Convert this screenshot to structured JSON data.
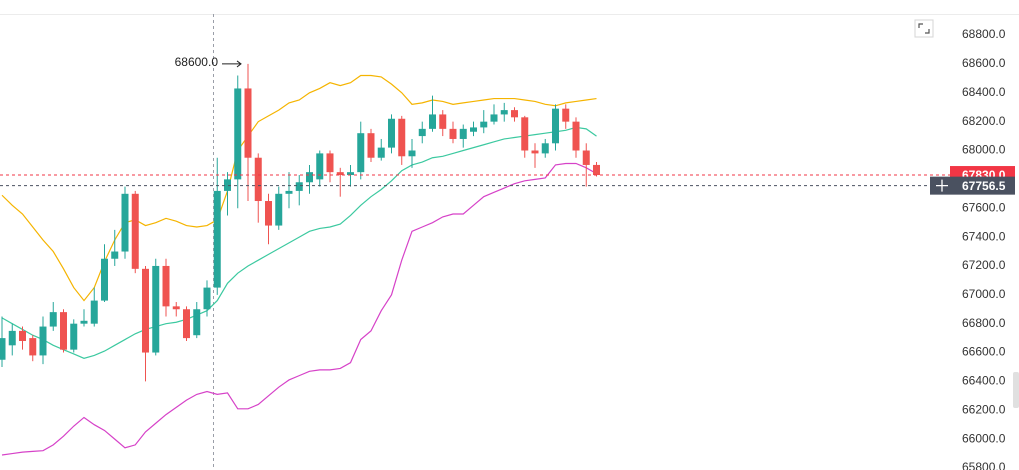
{
  "chart_data": {
    "type": "candlestick",
    "up_color": "#26a69a",
    "down_color": "#ef5350",
    "open": [
      66550,
      66650,
      66750,
      66700,
      66580,
      66780,
      66880,
      66620,
      66800,
      66800,
      66960,
      67250,
      67300,
      67700,
      67180,
      66600,
      67200,
      66920,
      66900,
      66720,
      66900,
      67050,
      67720,
      67800,
      68430,
      67950,
      67650,
      67480,
      67700,
      67720,
      67780,
      67800,
      67980,
      67850,
      67830,
      67850,
      68120,
      67950,
      68020,
      68220,
      67960,
      68100,
      68150,
      68250,
      68150,
      68080,
      68130,
      68160,
      68200,
      68250,
      68280,
      68230,
      68000,
      67980,
      68050,
      68290,
      68200,
      68000,
      67900
    ],
    "high": [
      66850,
      66800,
      66780,
      66720,
      66850,
      66950,
      66900,
      66830,
      66900,
      67050,
      67350,
      67450,
      67750,
      67720,
      67200,
      67250,
      67250,
      66950,
      66920,
      66950,
      67100,
      67950,
      67850,
      68520,
      68600,
      67980,
      67700,
      67750,
      67850,
      67830,
      67900,
      68000,
      68000,
      67880,
      67900,
      68200,
      68150,
      68080,
      68250,
      68240,
      68080,
      68200,
      68380,
      68280,
      68200,
      68180,
      68200,
      68280,
      68320,
      68330,
      68300,
      68240,
      68050,
      68080,
      68320,
      68320,
      68230,
      68050,
      67920
    ],
    "low": [
      66500,
      66580,
      66620,
      66540,
      66520,
      66750,
      66600,
      66600,
      66780,
      66780,
      66950,
      67200,
      67250,
      67150,
      66400,
      66580,
      66850,
      66850,
      66680,
      66700,
      66850,
      67000,
      67550,
      67600,
      67650,
      67500,
      67350,
      67450,
      67600,
      67620,
      67700,
      67750,
      67780,
      67680,
      67750,
      67800,
      67920,
      67930,
      67980,
      67900,
      67880,
      68050,
      68130,
      68100,
      68050,
      68020,
      68100,
      68120,
      68180,
      68200,
      68200,
      67950,
      67880,
      67950,
      68000,
      68150,
      67950,
      67750,
      67820
    ],
    "close": [
      66700,
      66750,
      66680,
      66580,
      66780,
      66880,
      66620,
      66800,
      66820,
      66960,
      67250,
      67300,
      67700,
      67180,
      66600,
      67200,
      66920,
      66900,
      66700,
      66900,
      67050,
      67720,
      67800,
      68430,
      67950,
      67650,
      67480,
      67700,
      67720,
      67780,
      67850,
      67980,
      67850,
      67830,
      67850,
      68120,
      67950,
      68020,
      68220,
      67960,
      68000,
      68150,
      68250,
      68150,
      68080,
      68150,
      68160,
      68200,
      68250,
      68280,
      68230,
      68000,
      67980,
      68050,
      68290,
      68200,
      68000,
      67900,
      67830
    ],
    "series": [
      {
        "color": "#f5b400",
        "values": [
          67690,
          67620,
          67560,
          67470,
          67380,
          67300,
          67180,
          67050,
          66960,
          67050,
          67230,
          67380,
          67500,
          67520,
          67480,
          67500,
          67530,
          67510,
          67480,
          67470,
          67480,
          67520,
          67720,
          68000,
          68100,
          68200,
          68240,
          68280,
          68330,
          68350,
          68400,
          68430,
          68470,
          68450,
          68470,
          68520,
          68520,
          68510,
          68460,
          68400,
          68320,
          68330,
          68350,
          68340,
          68320,
          68330,
          68340,
          68350,
          68360,
          68360,
          68360,
          68350,
          68340,
          68320,
          68310,
          68330,
          68340,
          68350,
          68360
        ]
      },
      {
        "color": "#3cc9a0",
        "values": [
          66840,
          66800,
          66760,
          66720,
          66690,
          66650,
          66620,
          66590,
          66560,
          66580,
          66610,
          66650,
          66690,
          66730,
          66760,
          66780,
          66800,
          66810,
          66830,
          66860,
          66890,
          66960,
          67080,
          67150,
          67200,
          67240,
          67280,
          67320,
          67360,
          67400,
          67440,
          67460,
          67470,
          67490,
          67550,
          67620,
          67680,
          67730,
          67790,
          67860,
          67900,
          67920,
          67950,
          67960,
          67980,
          68000,
          68020,
          68040,
          68060,
          68080,
          68090,
          68100,
          68110,
          68120,
          68130,
          68140,
          68160,
          68150,
          68100
        ]
      },
      {
        "color": "#d642c8",
        "values": [
          65890,
          65900,
          65910,
          65915,
          65920,
          65960,
          66020,
          66090,
          66150,
          66100,
          66060,
          66000,
          65940,
          65960,
          66050,
          66110,
          66170,
          66220,
          66270,
          66310,
          66330,
          66310,
          66320,
          66210,
          66210,
          66240,
          66300,
          66360,
          66410,
          66440,
          66470,
          66480,
          66480,
          66490,
          66530,
          66690,
          66750,
          66890,
          67000,
          67240,
          67440,
          67470,
          67500,
          67540,
          67560,
          67560,
          67620,
          67680,
          67710,
          67740,
          67770,
          67790,
          67800,
          67810,
          67900,
          67910,
          67910,
          67880,
          67840
        ]
      }
    ],
    "annotation": {
      "value": 68600,
      "label": "68600.0"
    },
    "price_lines": [
      {
        "value": 67830,
        "label": "67830.0",
        "color": "#f23645"
      },
      {
        "value": 67756.5,
        "label": "67756.5",
        "color": "#4a5160"
      }
    ],
    "ylim": [
      65786,
      69043
    ],
    "yticks": [
      {
        "value": 65800,
        "label": "65800.0"
      },
      {
        "value": 66000,
        "label": "66000.0"
      },
      {
        "value": 66200,
        "label": "66200.0"
      },
      {
        "value": 66400,
        "label": "66400.0"
      },
      {
        "value": 66600,
        "label": "66600.0"
      },
      {
        "value": 66800,
        "label": "66800.0"
      },
      {
        "value": 67000,
        "label": "67000.0"
      },
      {
        "value": 67200,
        "label": "67200.0"
      },
      {
        "value": 67400,
        "label": "67400.0"
      },
      {
        "value": 67600,
        "label": "67600.0"
      },
      {
        "value": 67800,
        "label": "67800.0"
      },
      {
        "value": 68000,
        "label": "68000.0"
      },
      {
        "value": 68200,
        "label": "68200.0"
      },
      {
        "value": 68400,
        "label": "68400.0"
      },
      {
        "value": 68600,
        "label": "68600.0"
      },
      {
        "value": 68800,
        "label": "68800.0"
      }
    ]
  }
}
